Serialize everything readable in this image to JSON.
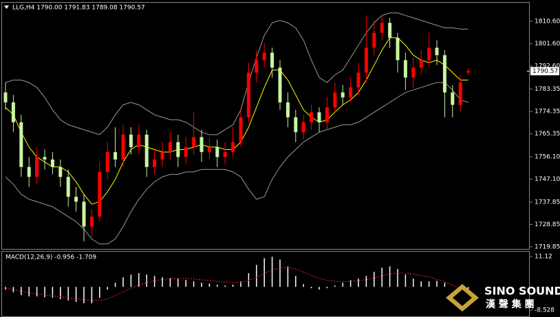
{
  "chart_data": [
    {
      "type": "candlestick",
      "title": "LLG,H4 1790.00 1791.83 1789.08 1790.57",
      "up_color": "#ff0000",
      "down_color": "#c8f5a0",
      "open": [
        1782,
        1778,
        1770,
        1752,
        1748,
        1756,
        1755,
        1752,
        1748,
        1740,
        1738,
        1728,
        1732,
        1750,
        1758,
        1755,
        1765,
        1760,
        1765,
        1752,
        1755,
        1758,
        1762,
        1756,
        1760,
        1764,
        1758,
        1760,
        1756,
        1758,
        1762,
        1772,
        1790,
        1795,
        1798,
        1792,
        1778,
        1772,
        1766,
        1770,
        1774,
        1770,
        1776,
        1782,
        1780,
        1784,
        1790,
        1800,
        1806,
        1810,
        1804,
        1795,
        1788,
        1792,
        1795,
        1800,
        1797,
        1782,
        1777,
        1790
      ],
      "high": [
        1786,
        1781,
        1773,
        1756,
        1760,
        1759,
        1758,
        1755,
        1751,
        1744,
        1741,
        1735,
        1754,
        1762,
        1768,
        1769,
        1768,
        1769,
        1767,
        1759,
        1762,
        1766,
        1765,
        1764,
        1774,
        1767,
        1764,
        1763,
        1762,
        1768,
        1775,
        1794,
        1799,
        1802,
        1800,
        1795,
        1782,
        1775,
        1773,
        1777,
        1776,
        1780,
        1786,
        1785,
        1788,
        1794,
        1813,
        1811,
        1813,
        1812,
        1806,
        1798,
        1796,
        1799,
        1806,
        1803,
        1799,
        1785,
        1789,
        1791.83
      ],
      "low": [
        1775,
        1766,
        1748,
        1744,
        1745,
        1751,
        1749,
        1744,
        1736,
        1734,
        1722,
        1724,
        1730,
        1747,
        1752,
        1752,
        1757,
        1757,
        1748,
        1749,
        1752,
        1755,
        1752,
        1753,
        1757,
        1754,
        1755,
        1752,
        1753,
        1756,
        1760,
        1770,
        1786,
        1792,
        1788,
        1775,
        1768,
        1762,
        1763,
        1767,
        1766,
        1767,
        1774,
        1777,
        1778,
        1781,
        1786,
        1797,
        1803,
        1800,
        1790,
        1783,
        1784,
        1789,
        1792,
        1793,
        1772,
        1772,
        1774,
        1789.08
      ],
      "close": [
        1778,
        1770,
        1752,
        1748,
        1756,
        1755,
        1752,
        1748,
        1740,
        1738,
        1728,
        1732,
        1750,
        1758,
        1755,
        1765,
        1760,
        1765,
        1752,
        1755,
        1758,
        1762,
        1756,
        1760,
        1764,
        1758,
        1760,
        1756,
        1758,
        1762,
        1772,
        1790,
        1795,
        1798,
        1792,
        1778,
        1772,
        1766,
        1770,
        1774,
        1770,
        1776,
        1782,
        1780,
        1784,
        1790,
        1800,
        1806,
        1810,
        1804,
        1795,
        1788,
        1792,
        1795,
        1800,
        1797,
        1782,
        1777,
        1786,
        1790.57
      ],
      "overlays": [
        {
          "color": "#ffff00",
          "values": [
            1776,
            1773,
            1766,
            1760,
            1756,
            1754,
            1752,
            1752,
            1750,
            1746,
            1741,
            1737,
            1738,
            1742,
            1747,
            1754,
            1759,
            1761,
            1760,
            1759,
            1758,
            1758,
            1759,
            1759,
            1760,
            1761,
            1760,
            1760,
            1759,
            1759,
            1762,
            1768,
            1776,
            1784,
            1791,
            1791,
            1787,
            1781,
            1775,
            1772,
            1770,
            1771,
            1774,
            1777,
            1779,
            1782,
            1787,
            1793,
            1799,
            1804,
            1804,
            1801,
            1797,
            1795,
            1794,
            1795,
            1793,
            1790,
            1787,
            1787
          ]
        },
        {
          "color": "#9a9a9a",
          "values": [
            1786,
            1787,
            1787,
            1786,
            1784,
            1780,
            1775,
            1771,
            1769,
            1768,
            1767,
            1766,
            1765,
            1768,
            1773,
            1777,
            1778,
            1777,
            1775,
            1773,
            1772,
            1771,
            1771,
            1770,
            1768,
            1766,
            1765,
            1765,
            1767,
            1769,
            1775,
            1786,
            1796,
            1805,
            1810,
            1811,
            1810,
            1808,
            1803,
            1795,
            1788,
            1786,
            1789,
            1791,
            1796,
            1801,
            1806,
            1810,
            1813,
            1814,
            1814,
            1813,
            1812,
            1811,
            1810,
            1809,
            1808,
            1808,
            1807.5,
            1807.5
          ]
        },
        {
          "color": "#9a9a9a",
          "values": [
            1748,
            1745,
            1741,
            1739,
            1738,
            1737,
            1736,
            1734,
            1732,
            1730,
            1727,
            1723,
            1721,
            1721,
            1723,
            1728,
            1734,
            1739,
            1743,
            1746,
            1748,
            1749,
            1749,
            1750,
            1750,
            1751,
            1751,
            1751,
            1751,
            1750,
            1748,
            1743,
            1739,
            1740,
            1747,
            1752,
            1756,
            1759,
            1762,
            1764,
            1766,
            1767,
            1768,
            1769,
            1769,
            1770,
            1772,
            1774,
            1776,
            1778,
            1780,
            1782,
            1783,
            1784,
            1785,
            1786,
            1786,
            1783,
            1779,
            1778
          ]
        }
      ],
      "ylim": [
        1719.0,
        1818.1
      ],
      "yticks": [
        {
          "value": 1810.6,
          "label": "1810.60"
        },
        {
          "value": 1801.6,
          "label": "1801.60"
        },
        {
          "value": 1792.6,
          "label": "1792.60"
        },
        {
          "value": 1783.35,
          "label": "1783.35"
        },
        {
          "value": 1774.35,
          "label": "1774.35"
        },
        {
          "value": 1765.35,
          "label": "1765.35"
        },
        {
          "value": 1756.1,
          "label": "1756.10"
        },
        {
          "value": 1747.1,
          "label": "1747.10"
        },
        {
          "value": 1737.85,
          "label": "1737.85"
        },
        {
          "value": 1728.85,
          "label": "1728.85"
        },
        {
          "value": 1719.85,
          "label": "1719.85"
        }
      ],
      "last_price": {
        "value": 1790.57,
        "label": "1790.57"
      }
    },
    {
      "type": "macd",
      "title": "MACD(12,26,9) -0.956 -1.709",
      "histogram_color": "#ffffff",
      "signal_color": "#ff2020",
      "histogram": [
        -1,
        -2,
        -3,
        -3.5,
        -3.5,
        -3.8,
        -4,
        -4.5,
        -5,
        -5.5,
        -6,
        -6,
        -4,
        -1,
        1.5,
        3.5,
        4.5,
        5,
        4.5,
        4,
        3.5,
        3.2,
        3,
        2.5,
        2,
        1.5,
        1.2,
        0.8,
        0.5,
        0.8,
        2,
        5,
        8,
        10.5,
        11,
        10,
        7.5,
        4,
        1,
        -0.5,
        -1,
        -0.5,
        0.5,
        1.5,
        2.5,
        3,
        4,
        5.5,
        7,
        7.5,
        6.5,
        4.5,
        3,
        2,
        2,
        2.2,
        1.5,
        0,
        -0.8,
        -0.956
      ],
      "signal": [
        -0.5,
        -1,
        -1.6,
        -2.2,
        -2.6,
        -3,
        -3.3,
        -3.6,
        -4,
        -4.3,
        -4.7,
        -5,
        -5,
        -4.4,
        -3.2,
        -1.8,
        -0.5,
        0.6,
        1.5,
        2.2,
        2.7,
        3,
        3.1,
        3.1,
        2.9,
        2.6,
        2.3,
        2,
        1.7,
        1.5,
        1.6,
        2.3,
        3.5,
        4.9,
        6.1,
        6.9,
        7.1,
        6.5,
        5.4,
        4.2,
        3.1,
        2.4,
        2,
        1.9,
        2,
        2.2,
        2.6,
        3.2,
        4,
        4.7,
        5.1,
        5,
        4.6,
        4.1,
        3.6,
        2.8,
        1.8,
        0.6,
        -0.5,
        -1.709
      ],
      "ylim": [
        -10.77,
        12.86
      ],
      "yticks": [
        11.12,
        -8.528
      ]
    }
  ],
  "logo": {
    "name": "SINO SOUND",
    "subtitle": "漢 聲 集 團"
  }
}
